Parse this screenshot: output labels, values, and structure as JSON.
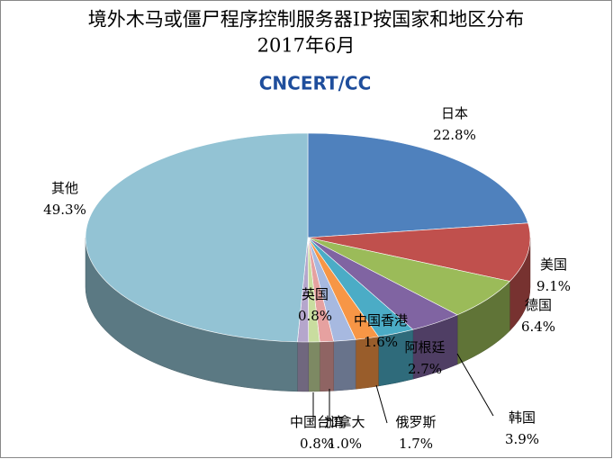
{
  "chart_data": {
    "type": "pie3d",
    "title": "境外木马或僵尸程序控制服务器IP按国家和地区分布",
    "subtitle": "2017年6月",
    "logo": "CNCERT/CC",
    "categories": [
      "日本",
      "美国",
      "德国",
      "韩国",
      "阿根廷",
      "俄罗斯",
      "中国香港",
      "加拿大",
      "中国台湾",
      "英国",
      "其他"
    ],
    "values": [
      22.8,
      9.1,
      6.4,
      3.9,
      2.7,
      1.7,
      1.6,
      1.0,
      0.8,
      0.8,
      49.3
    ],
    "value_labels": [
      "22.8%",
      "9.1%",
      "6.4%",
      "3.9%",
      "2.7%",
      "1.7%",
      "1.6%",
      "1.0%",
      "0.8%",
      "0.8%",
      "49.3%"
    ],
    "colors": [
      "#4f81bd",
      "#c0504d",
      "#9bbb59",
      "#8064a2",
      "#4bacc6",
      "#f79646",
      "#a7b9e0",
      "#e6a1a0",
      "#c9dd9f",
      "#b5a6cc",
      "#93c3d4"
    ]
  }
}
